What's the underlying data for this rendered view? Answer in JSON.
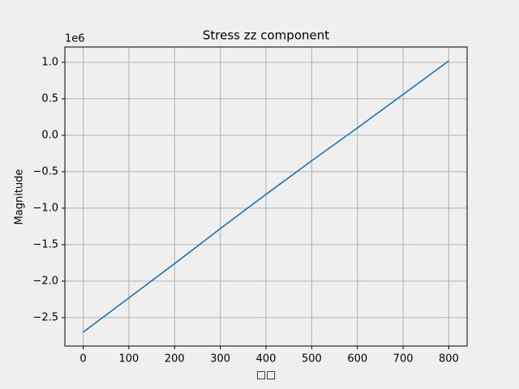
{
  "chart_data": {
    "type": "line",
    "title": "Stress zz component",
    "xlabel": "□□",
    "ylabel": "Magnitude",
    "y_offset_label": "1e6",
    "x": [
      0,
      100,
      200,
      300,
      400,
      500,
      600,
      700,
      800
    ],
    "series": [
      {
        "name": "Stress zz",
        "color": "#1f72b0",
        "values": [
          -2700000,
          -2230000,
          -1760000,
          -1280000,
          -810000,
          -350000,
          100000,
          560000,
          1020000
        ]
      }
    ],
    "xlim": [
      -40,
      840
    ],
    "xticks": [
      0,
      100,
      200,
      300,
      400,
      500,
      600,
      700,
      800
    ],
    "ylim": [
      -2890000,
      1210000
    ],
    "yticks": [
      {
        "value": -2500000,
        "label": "−2.5"
      },
      {
        "value": -2000000,
        "label": "−2.0"
      },
      {
        "value": -1500000,
        "label": "−1.5"
      },
      {
        "value": -1000000,
        "label": "−1.0"
      },
      {
        "value": -500000,
        "label": "−0.5"
      },
      {
        "value": 0,
        "label": "0.0"
      },
      {
        "value": 500000,
        "label": "0.5"
      },
      {
        "value": 1000000,
        "label": "1.0"
      }
    ],
    "grid": true
  }
}
